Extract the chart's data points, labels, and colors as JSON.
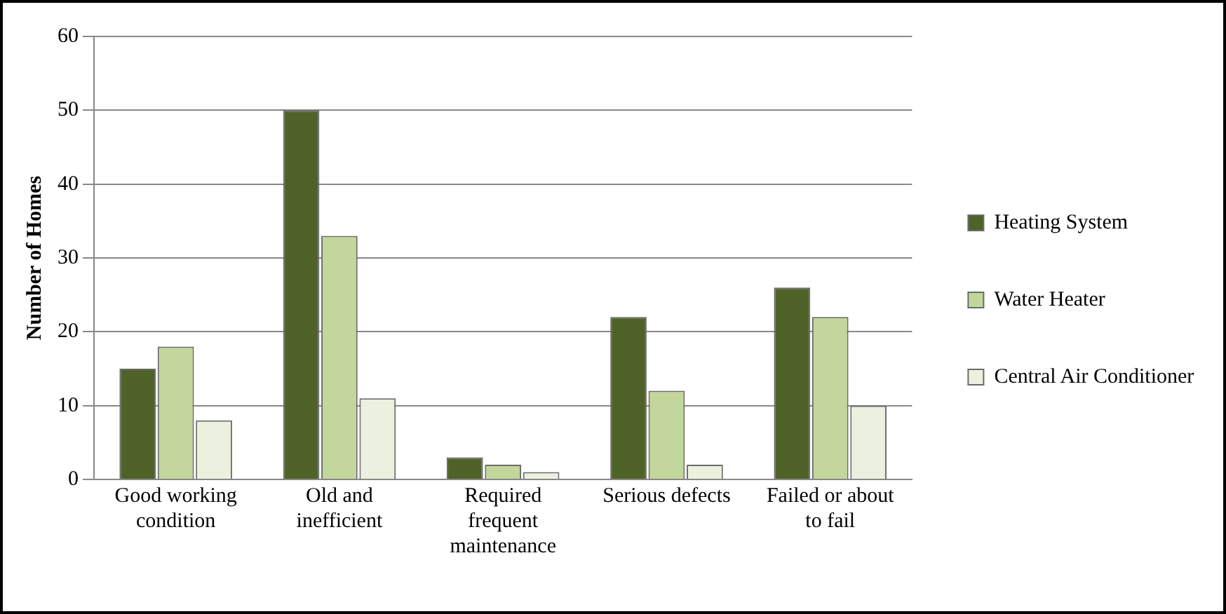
{
  "chart_data": {
    "type": "bar",
    "ylabel": "Number of Homes",
    "categories": [
      "Good working condition",
      "Old and inefficient",
      "Required frequent maintenance",
      "Serious defects",
      "Failed or about to fail"
    ],
    "series": [
      {
        "name": "Heating System",
        "color": "#4f6228",
        "values": [
          15,
          50,
          3,
          22,
          26
        ]
      },
      {
        "name": "Water Heater",
        "color": "#c3d69b",
        "values": [
          18,
          33,
          2,
          12,
          22
        ]
      },
      {
        "name": "Central Air Conditioner",
        "color": "#ebf1de",
        "values": [
          8,
          11,
          1,
          2,
          10
        ]
      }
    ],
    "ylim": [
      0,
      60
    ],
    "yticks": [
      0,
      10,
      20,
      30,
      40,
      50,
      60
    ],
    "grid": "y",
    "legend": "right"
  }
}
